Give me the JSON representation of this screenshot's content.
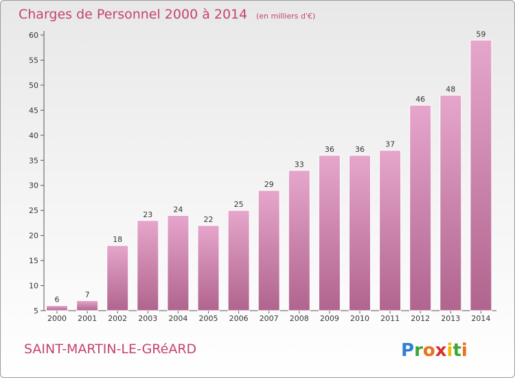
{
  "chart_data": {
    "type": "bar",
    "title": "Charges de Personnel 2000 à 2014",
    "subtitle": "(en milliers d'€)",
    "categories": [
      "2000",
      "2001",
      "2002",
      "2003",
      "2004",
      "2005",
      "2006",
      "2007",
      "2008",
      "2009",
      "2010",
      "2011",
      "2012",
      "2013",
      "2014"
    ],
    "values": [
      6,
      7,
      18,
      23,
      24,
      22,
      25,
      29,
      33,
      36,
      36,
      37,
      46,
      48,
      59
    ],
    "xlabel": "",
    "ylabel": "",
    "ylim": [
      5,
      60
    ],
    "yticks": [
      5,
      10,
      15,
      20,
      25,
      30,
      35,
      40,
      45,
      50,
      55,
      60
    ],
    "grid": false,
    "legend": "none",
    "bar_color_top": "#e6a6cc",
    "bar_color_bottom": "#b0648e",
    "title_color": "#c4446a"
  },
  "footer": {
    "place_name": "SAINT-MARTIN-LE-GRéARD",
    "logo": {
      "letters": [
        "P",
        "r",
        "o",
        "x",
        "i",
        "t",
        "i"
      ],
      "colors": [
        "#2f7fd1",
        "#3fa535",
        "#e8701c",
        "#d62f2f",
        "#f0b800",
        "#3fa535",
        "#e8701c"
      ]
    }
  }
}
